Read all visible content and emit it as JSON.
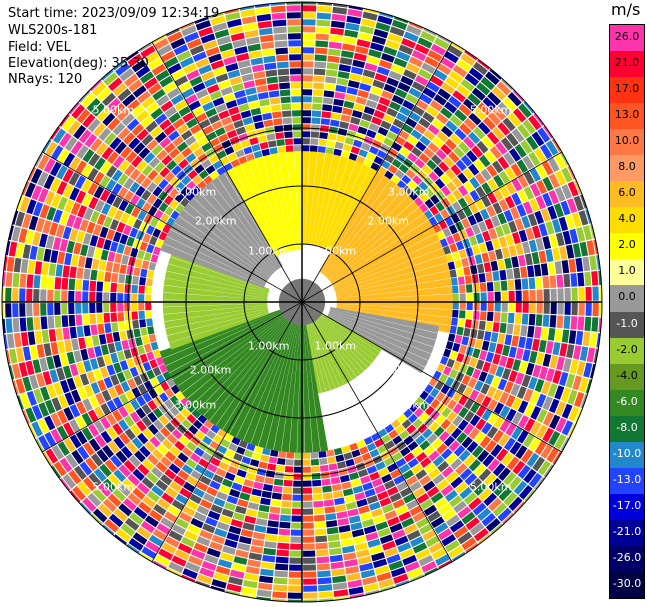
{
  "info": {
    "start_time": "Start time: 2023/09/09 12:34:19",
    "instrument": "WLS200s-181",
    "field": "Field: VEL",
    "elevation": "Elevation(deg): 35.30",
    "nrays": "NRays: 120"
  },
  "colorbar": {
    "unit": "m/s",
    "ticks": [
      "26.0",
      "21.0",
      "17.0",
      "13.0",
      "10.0",
      "8.0",
      "6.0",
      "4.0",
      "2.0",
      "1.0",
      "0.0",
      "-1.0",
      "-2.0",
      "-4.0",
      "-6.0",
      "-8.0",
      "-10.0",
      "-13.0",
      "-17.0",
      "-21.0",
      "-26.0",
      "-30.0"
    ],
    "colors": [
      "#ff33aa",
      "#ff0033",
      "#ff3311",
      "#ff5522",
      "#ff7744",
      "#ff9966",
      "#ffbb22",
      "#ffdd00",
      "#ffff00",
      "#ffff99",
      "#999999",
      "#555555",
      "#99cc33",
      "#669922",
      "#338822",
      "#117733",
      "#2288cc",
      "#2244ff",
      "#0000dd",
      "#000099",
      "#000066",
      "#000044"
    ]
  },
  "chart_data": {
    "type": "heatmap",
    "title": "",
    "range_rings": [
      "1.00km",
      "2.00km",
      "3.00km",
      "5.00km"
    ],
    "field": "VEL",
    "unit": "m/s",
    "elevation_deg": 35.3,
    "nrays": 120,
    "value_range": [
      -30.0,
      26.0
    ],
    "sectors": [
      {
        "azimuth_from": 0,
        "azimuth_to": 30,
        "inner_km": 1.0,
        "outer_km": 2.6,
        "value": 4.0
      },
      {
        "azimuth_from": 30,
        "azimuth_to": 100,
        "inner_km": 0.6,
        "outer_km": 2.6,
        "value": 6.0
      },
      {
        "azimuth_from": 100,
        "azimuth_to": 120,
        "inner_km": 0.5,
        "outer_km": 2.4,
        "value": 0.0
      },
      {
        "azimuth_from": 120,
        "azimuth_to": 170,
        "inner_km": 0.3,
        "outer_km": 1.6,
        "value": -2.0
      },
      {
        "azimuth_from": 170,
        "azimuth_to": 250,
        "inner_km": 0.3,
        "outer_km": 2.6,
        "value": -6.0
      },
      {
        "azimuth_from": 250,
        "azimuth_to": 290,
        "inner_km": 0.6,
        "outer_km": 2.4,
        "value": -2.0
      },
      {
        "azimuth_from": 290,
        "azimuth_to": 330,
        "inner_km": 0.7,
        "outer_km": 2.6,
        "value": 0.0
      },
      {
        "azimuth_from": 330,
        "azimuth_to": 360,
        "inner_km": 0.9,
        "outer_km": 2.6,
        "value": 2.0
      }
    ],
    "noise_beyond_km": 2.6
  }
}
